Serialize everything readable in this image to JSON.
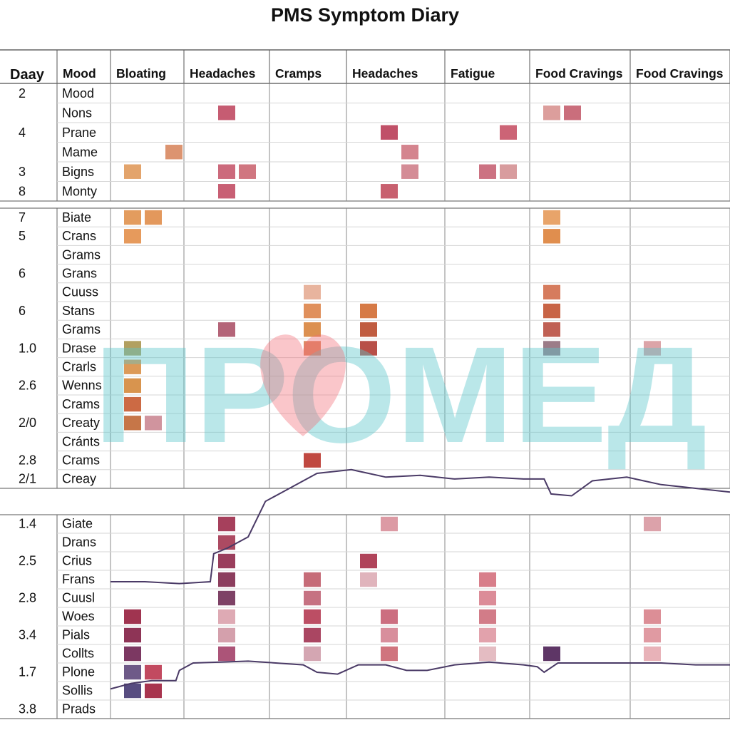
{
  "title": "PMS Symptom Diary",
  "chart_data": {
    "type": "heatmap",
    "title": "PMS Symptom Diary",
    "day_header": "Daay",
    "columns": [
      "Mood",
      "Bloating",
      "Headaches",
      "Cramps",
      "Headaches",
      "Fatigue",
      "Food Cravings",
      "Food Cravings"
    ],
    "panels": [
      {
        "rows": [
          {
            "label": "Mood",
            "day": "2"
          },
          {
            "label": "Nons",
            "day": ""
          },
          {
            "label": "Prane",
            "day": "4"
          },
          {
            "label": "Mame",
            "day": ""
          },
          {
            "label": "Bigns",
            "day": "3"
          },
          {
            "label": "Monty",
            "day": "8"
          }
        ],
        "cells": [
          {
            "row": 1,
            "col": 2,
            "slot": 1,
            "color": "#c65c72"
          },
          {
            "row": 1,
            "col": 6,
            "slot": 0,
            "color": "#dc9e9c"
          },
          {
            "row": 1,
            "col": 6,
            "slot": 1,
            "color": "#ca6e7c"
          },
          {
            "row": 2,
            "col": 4,
            "slot": 1,
            "color": "#c05068"
          },
          {
            "row": 2,
            "col": 5,
            "slot": 2,
            "color": "#cc6476"
          },
          {
            "row": 3,
            "col": 1,
            "slot": 2,
            "color": "#dc9470"
          },
          {
            "row": 3,
            "col": 4,
            "slot": 2,
            "color": "#d4848e"
          },
          {
            "row": 4,
            "col": 1,
            "slot": 0,
            "color": "#e3a46c"
          },
          {
            "row": 4,
            "col": 2,
            "slot": 1,
            "color": "#cc6a7c"
          },
          {
            "row": 4,
            "col": 2,
            "slot": 2,
            "color": "#d07680"
          },
          {
            "row": 4,
            "col": 4,
            "slot": 2,
            "color": "#d48c96"
          },
          {
            "row": 4,
            "col": 5,
            "slot": 1,
            "color": "#cc7282"
          },
          {
            "row": 4,
            "col": 5,
            "slot": 2,
            "color": "#d89c9e"
          },
          {
            "row": 5,
            "col": 2,
            "slot": 1,
            "color": "#c85f74"
          },
          {
            "row": 5,
            "col": 4,
            "slot": 1,
            "color": "#c8606f"
          }
        ]
      },
      {
        "rows": [
          {
            "label": "Biate",
            "day": "7"
          },
          {
            "label": "Crans",
            "day": "5"
          },
          {
            "label": "Grams",
            "day": ""
          },
          {
            "label": "Grans",
            "day": "6"
          },
          {
            "label": "Cuuss",
            "day": ""
          },
          {
            "label": "Stans",
            "day": "6"
          },
          {
            "label": "Grams",
            "day": ""
          },
          {
            "label": "Drase",
            "day": "1.0"
          },
          {
            "label": "Crarls",
            "day": ""
          },
          {
            "label": "Wenns",
            "day": "2.6"
          },
          {
            "label": "Crams",
            "day": ""
          },
          {
            "label": "Creaty",
            "day": "2/0"
          },
          {
            "label": "Cránts",
            "day": ""
          },
          {
            "label": "Crams",
            "day": "2.8"
          },
          {
            "label": "Creay",
            "day": "2/1"
          }
        ],
        "cells": [
          {
            "row": 0,
            "col": 1,
            "slot": 0,
            "color": "#e39c5e"
          },
          {
            "row": 0,
            "col": 1,
            "slot": 1,
            "color": "#e3985c"
          },
          {
            "row": 0,
            "col": 6,
            "slot": 0,
            "color": "#e8a46a"
          },
          {
            "row": 1,
            "col": 1,
            "slot": 0,
            "color": "#e69a5c"
          },
          {
            "row": 1,
            "col": 6,
            "slot": 0,
            "color": "#e08e4e"
          },
          {
            "row": 4,
            "col": 3,
            "slot": 1,
            "color": "#e8b49e"
          },
          {
            "row": 4,
            "col": 6,
            "slot": 0,
            "color": "#d67c5e"
          },
          {
            "row": 5,
            "col": 3,
            "slot": 1,
            "color": "#e0905c"
          },
          {
            "row": 5,
            "col": 4,
            "slot": 0,
            "color": "#d67a46"
          },
          {
            "row": 5,
            "col": 6,
            "slot": 0,
            "color": "#c86446"
          },
          {
            "row": 6,
            "col": 2,
            "slot": 1,
            "color": "#b46478"
          },
          {
            "row": 6,
            "col": 3,
            "slot": 1,
            "color": "#dc9050"
          },
          {
            "row": 6,
            "col": 4,
            "slot": 0,
            "color": "#c05c40"
          },
          {
            "row": 6,
            "col": 6,
            "slot": 0,
            "color": "#c06054"
          },
          {
            "row": 7,
            "col": 1,
            "slot": 0,
            "color": "#b2a060"
          },
          {
            "row": 7,
            "col": 3,
            "slot": 1,
            "color": "#de8a64"
          },
          {
            "row": 7,
            "col": 4,
            "slot": 0,
            "color": "#b85048"
          },
          {
            "row": 7,
            "col": 6,
            "slot": 0,
            "color": "#9c7c88"
          },
          {
            "row": 7,
            "col": 7,
            "slot": 0,
            "color": "#dca4a8"
          },
          {
            "row": 8,
            "col": 1,
            "slot": 0,
            "color": "#dc9a58"
          },
          {
            "row": 9,
            "col": 1,
            "slot": 0,
            "color": "#d8944e"
          },
          {
            "row": 10,
            "col": 1,
            "slot": 0,
            "color": "#cc6a44"
          },
          {
            "row": 11,
            "col": 1,
            "slot": 0,
            "color": "#c67648"
          },
          {
            "row": 11,
            "col": 1,
            "slot": 1,
            "color": "#d0949e"
          },
          {
            "row": 13,
            "col": 3,
            "slot": 1,
            "color": "#c04840"
          }
        ],
        "line": [
          {
            "x": 0.0,
            "y": 20.0
          },
          {
            "x": 0.5,
            "y": 20.0
          },
          {
            "x": 1.0,
            "y": 20.1
          },
          {
            "x": 1.45,
            "y": 20.0
          },
          {
            "x": 1.5,
            "y": 18.5
          },
          {
            "x": 1.7,
            "y": 18.2
          },
          {
            "x": 2.0,
            "y": 17.6
          },
          {
            "x": 2.25,
            "y": 15.7
          },
          {
            "x": 2.5,
            "y": 15.2
          },
          {
            "x": 3.0,
            "y": 14.2
          },
          {
            "x": 3.5,
            "y": 14.0
          },
          {
            "x": 4.0,
            "y": 14.4
          },
          {
            "x": 4.5,
            "y": 14.3
          },
          {
            "x": 5.0,
            "y": 14.5
          },
          {
            "x": 5.5,
            "y": 14.4
          },
          {
            "x": 6.0,
            "y": 14.5
          },
          {
            "x": 6.3,
            "y": 14.5
          },
          {
            "x": 6.4,
            "y": 15.3
          },
          {
            "x": 6.7,
            "y": 15.4
          },
          {
            "x": 7.0,
            "y": 14.6
          },
          {
            "x": 7.5,
            "y": 14.4
          },
          {
            "x": 8.0,
            "y": 14.8
          },
          {
            "x": 8.5,
            "y": 15.0
          },
          {
            "x": 9.0,
            "y": 15.2
          }
        ]
      },
      {
        "rows": [
          {
            "label": "Giate",
            "day": "1.4"
          },
          {
            "label": "Drans",
            "day": ""
          },
          {
            "label": "Crius",
            "day": "2.5"
          },
          {
            "label": "Frans",
            "day": ""
          },
          {
            "label": "Cuusl",
            "day": "2.8"
          },
          {
            "label": "Woes",
            "day": ""
          },
          {
            "label": "Pials",
            "day": "3.4"
          },
          {
            "label": "Collts",
            "day": ""
          },
          {
            "label": "Plone",
            "day": "1.7"
          },
          {
            "label": "Sollis",
            "day": ""
          },
          {
            "label": "Prads",
            "day": "3.8"
          }
        ],
        "cells": [
          {
            "row": 0,
            "col": 2,
            "slot": 1,
            "color": "#a6405c"
          },
          {
            "row": 0,
            "col": 4,
            "slot": 1,
            "color": "#dc9aa4"
          },
          {
            "row": 0,
            "col": 7,
            "slot": 0,
            "color": "#dca2aa"
          },
          {
            "row": 1,
            "col": 2,
            "slot": 1,
            "color": "#ac4a62"
          },
          {
            "row": 2,
            "col": 2,
            "slot": 1,
            "color": "#9a3e5c"
          },
          {
            "row": 2,
            "col": 4,
            "slot": 0,
            "color": "#b0445a"
          },
          {
            "row": 3,
            "col": 2,
            "slot": 1,
            "color": "#8c3e5e"
          },
          {
            "row": 3,
            "col": 3,
            "slot": 1,
            "color": "#c66c78"
          },
          {
            "row": 3,
            "col": 4,
            "slot": 0,
            "color": "#e0b4bc"
          },
          {
            "row": 3,
            "col": 5,
            "slot": 1,
            "color": "#d87e8a"
          },
          {
            "row": 4,
            "col": 2,
            "slot": 1,
            "color": "#7e4266"
          },
          {
            "row": 4,
            "col": 3,
            "slot": 1,
            "color": "#c67282"
          },
          {
            "row": 4,
            "col": 5,
            "slot": 1,
            "color": "#dc8c98"
          },
          {
            "row": 5,
            "col": 1,
            "slot": 0,
            "color": "#a03450"
          },
          {
            "row": 5,
            "col": 2,
            "slot": 1,
            "color": "#deaab4"
          },
          {
            "row": 5,
            "col": 3,
            "slot": 1,
            "color": "#bc4e64"
          },
          {
            "row": 5,
            "col": 4,
            "slot": 1,
            "color": "#cc6e80"
          },
          {
            "row": 5,
            "col": 5,
            "slot": 1,
            "color": "#d27c88"
          },
          {
            "row": 5,
            "col": 7,
            "slot": 0,
            "color": "#dc8e96"
          },
          {
            "row": 6,
            "col": 1,
            "slot": 0,
            "color": "#8e3456"
          },
          {
            "row": 6,
            "col": 2,
            "slot": 1,
            "color": "#d4a0ac"
          },
          {
            "row": 6,
            "col": 3,
            "slot": 1,
            "color": "#aa4662"
          },
          {
            "row": 6,
            "col": 4,
            "slot": 1,
            "color": "#d88e9c"
          },
          {
            "row": 6,
            "col": 5,
            "slot": 1,
            "color": "#e2a2ac"
          },
          {
            "row": 6,
            "col": 7,
            "slot": 0,
            "color": "#e09aa2"
          },
          {
            "row": 7,
            "col": 1,
            "slot": 0,
            "color": "#7c3862"
          },
          {
            "row": 7,
            "col": 2,
            "slot": 1,
            "color": "#ac5478"
          },
          {
            "row": 7,
            "col": 3,
            "slot": 1,
            "color": "#d4a6b2"
          },
          {
            "row": 7,
            "col": 4,
            "slot": 1,
            "color": "#d0747e"
          },
          {
            "row": 7,
            "col": 5,
            "slot": 1,
            "color": "#e4bcc2"
          },
          {
            "row": 7,
            "col": 6,
            "slot": 0,
            "color": "#5e3666"
          },
          {
            "row": 7,
            "col": 7,
            "slot": 0,
            "color": "#e8b2b8"
          },
          {
            "row": 8,
            "col": 1,
            "slot": 0,
            "color": "#6e5a88"
          },
          {
            "row": 8,
            "col": 1,
            "slot": 1,
            "color": "#c24a60"
          },
          {
            "row": 9,
            "col": 1,
            "slot": 0,
            "color": "#574c80"
          },
          {
            "row": 9,
            "col": 1,
            "slot": 1,
            "color": "#a8344e"
          }
        ],
        "line": [
          {
            "x": 0.0,
            "y": 9.4
          },
          {
            "x": 0.3,
            "y": 9.1
          },
          {
            "x": 0.6,
            "y": 8.95
          },
          {
            "x": 0.95,
            "y": 8.95
          },
          {
            "x": 1.0,
            "y": 8.4
          },
          {
            "x": 1.2,
            "y": 8.0
          },
          {
            "x": 1.6,
            "y": 7.95
          },
          {
            "x": 2.0,
            "y": 7.9
          },
          {
            "x": 2.4,
            "y": 8.0
          },
          {
            "x": 2.8,
            "y": 8.1
          },
          {
            "x": 3.0,
            "y": 8.5
          },
          {
            "x": 3.3,
            "y": 8.6
          },
          {
            "x": 3.6,
            "y": 8.1
          },
          {
            "x": 4.0,
            "y": 8.1
          },
          {
            "x": 4.3,
            "y": 8.4
          },
          {
            "x": 4.6,
            "y": 8.4
          },
          {
            "x": 5.0,
            "y": 8.1
          },
          {
            "x": 5.5,
            "y": 7.95
          },
          {
            "x": 6.0,
            "y": 8.1
          },
          {
            "x": 6.2,
            "y": 8.2
          },
          {
            "x": 6.3,
            "y": 8.5
          },
          {
            "x": 6.5,
            "y": 8.0
          },
          {
            "x": 7.0,
            "y": 8.0
          },
          {
            "x": 7.5,
            "y": 8.0
          },
          {
            "x": 8.0,
            "y": 8.0
          },
          {
            "x": 8.5,
            "y": 8.1
          },
          {
            "x": 9.0,
            "y": 8.1
          }
        ]
      }
    ],
    "watermark": "ПРОМЕД",
    "grid": true,
    "legend": "none"
  }
}
